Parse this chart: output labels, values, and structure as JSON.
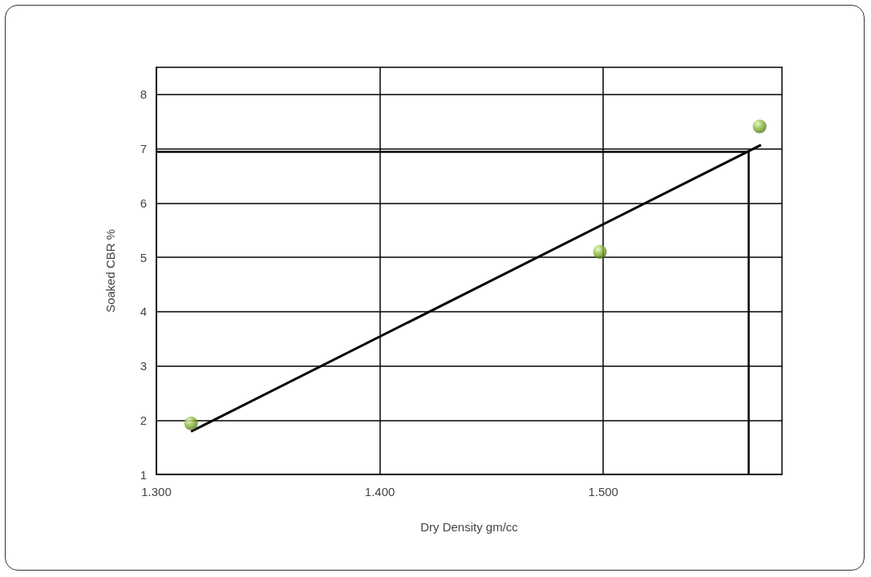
{
  "chart_data": {
    "type": "scatter",
    "xlabel": "Dry Density gm/cc",
    "ylabel": "Soaked CBR %",
    "series": [
      {
        "color": "#8dbb3c",
        "x": [
          1.3155,
          1.4985,
          1.57
        ],
        "values": [
          1.94,
          5.1,
          7.41
        ]
      },
      {
        "type": "line",
        "marker": "none",
        "color": "#000000",
        "x": [
          1.3155,
          1.5706
        ],
        "values": [
          1.79,
          7.07
        ]
      }
    ],
    "xlim": [
      1.3,
      1.58
    ],
    "xticks": [
      {
        "value": 1.3,
        "label": "1.300"
      },
      {
        "value": 1.4,
        "label": "1.400"
      },
      {
        "value": 1.5,
        "label": "1.500"
      }
    ],
    "ylim": [
      1,
      8.5
    ],
    "yticks": [
      1,
      2,
      3,
      4,
      5,
      6,
      7,
      8
    ],
    "ref_lines": [
      {
        "axis": "y",
        "value": 6.95,
        "color": "#000000"
      },
      {
        "axis": "x",
        "value": 1.565,
        "color": "#000000"
      }
    ],
    "grid": true,
    "marker": "circle"
  }
}
